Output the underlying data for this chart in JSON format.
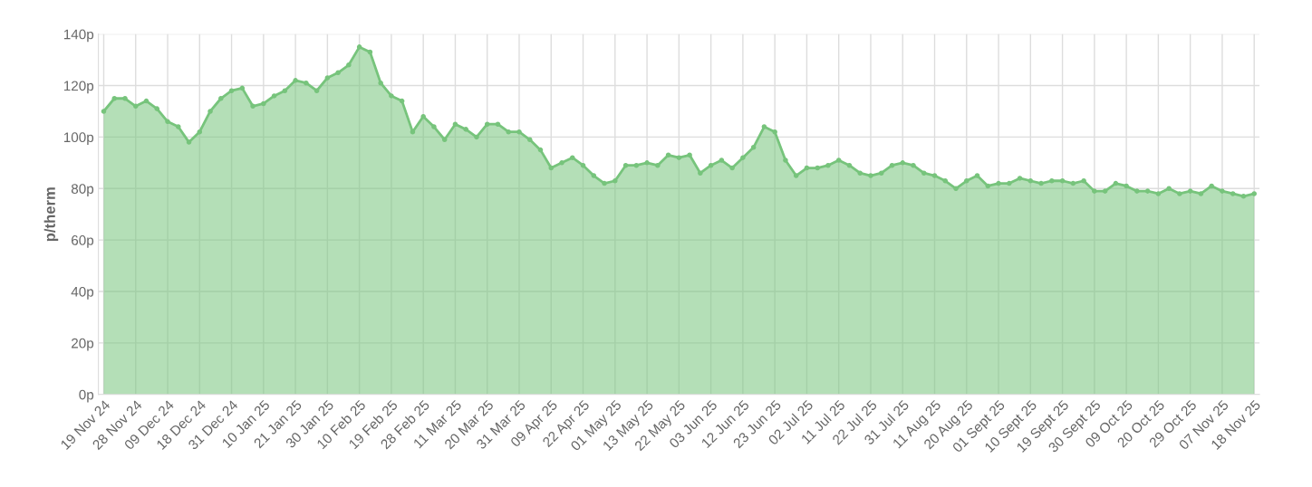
{
  "chart_data": {
    "type": "area",
    "ylabel": "p/therm",
    "categories": [
      "19 Nov 24",
      null,
      null,
      "28 Nov 24",
      null,
      null,
      "09 Dec 24",
      null,
      null,
      "18 Dec 24",
      null,
      null,
      "31 Dec 24",
      null,
      null,
      "10 Jan 25",
      null,
      null,
      "21 Jan 25",
      null,
      null,
      "30 Jan 25",
      null,
      null,
      "10 Feb 25",
      null,
      null,
      "19 Feb 25",
      null,
      null,
      "28 Feb 25",
      null,
      null,
      "11 Mar 25",
      null,
      null,
      "20 Mar 25",
      null,
      null,
      "31 Mar 25",
      null,
      null,
      "09 Apr 25",
      null,
      null,
      "22 Apr 25",
      null,
      null,
      "01 May 25",
      null,
      null,
      "13 May 25",
      null,
      null,
      "22 May 25",
      null,
      null,
      "03 Jun 25",
      null,
      null,
      "12 Jun 25",
      null,
      null,
      "23 Jun 25",
      null,
      null,
      "02 Jul 25",
      null,
      null,
      "11 Jul 25",
      null,
      null,
      "22 Jul 25",
      null,
      null,
      "31 Jul 25",
      null,
      null,
      "11 Aug 25",
      null,
      null,
      "20 Aug 25",
      null,
      null,
      "01 Sept 25",
      null,
      null,
      "10 Sept 25",
      null,
      null,
      "19 Sept 25",
      null,
      null,
      "30 Sept 25",
      null,
      null,
      "09 Oct 25",
      null,
      null,
      "20 Oct 25",
      null,
      null,
      "29 Oct 25",
      null,
      null,
      "07 Nov 25",
      null,
      null,
      "18 Nov 25"
    ],
    "series": [
      {
        "color": "#77c47c",
        "values": [
          110,
          115,
          115,
          112,
          114,
          111,
          106,
          104,
          98,
          102,
          110,
          115,
          118,
          119,
          112,
          113,
          116,
          118,
          122,
          121,
          118,
          123,
          125,
          128,
          135,
          133,
          121,
          116,
          114,
          102,
          108,
          104,
          99,
          105,
          103,
          100,
          105,
          105,
          102,
          102,
          99,
          95,
          88,
          90,
          92,
          89,
          85,
          82,
          83,
          89,
          89,
          90,
          89,
          93,
          92,
          93,
          86,
          89,
          91,
          88,
          92,
          96,
          104,
          102,
          91,
          85,
          88,
          88,
          89,
          91,
          89,
          86,
          85,
          86,
          89,
          90,
          89,
          86,
          85,
          83,
          80,
          83,
          85,
          81,
          82,
          82,
          84,
          83,
          82,
          83,
          83,
          82,
          83,
          79,
          79,
          82,
          81,
          79,
          79,
          78,
          80,
          78,
          79,
          78,
          81,
          79,
          78,
          77,
          78
        ]
      }
    ],
    "ylim": [
      0,
      140
    ],
    "yticks": [
      {
        "value": 0,
        "label": "0p"
      },
      {
        "value": 20,
        "label": "20p"
      },
      {
        "value": 40,
        "label": "40p"
      },
      {
        "value": 60,
        "label": "60p"
      },
      {
        "value": 80,
        "label": "80p"
      },
      {
        "value": 100,
        "label": "100p"
      },
      {
        "value": 120,
        "label": "120p"
      },
      {
        "value": 140,
        "label": "140p"
      }
    ],
    "grid": true,
    "marker": "circle"
  }
}
